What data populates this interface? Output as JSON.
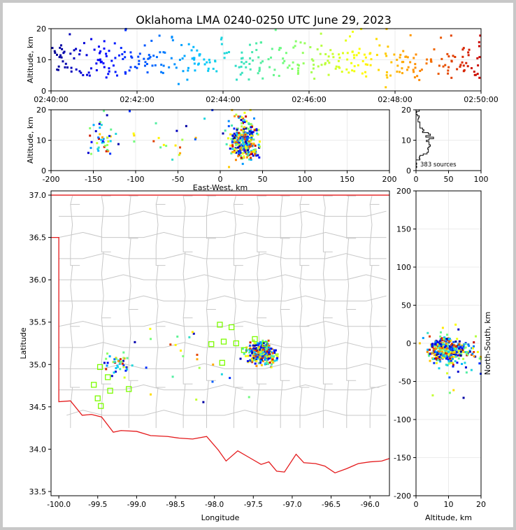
{
  "title": "Oklahoma LMA 0240-0250 UTC June 29, 2023",
  "source_count_label": "383 sources",
  "chart_data": [
    {
      "panel": "altitude-time",
      "type": "scatter",
      "xlabel": "",
      "ylabel": "Altitude, km",
      "xticks": [
        "02:40:00",
        "02:42:00",
        "02:44:00",
        "02:46:00",
        "02:48:00",
        "02:50:00"
      ],
      "xlim_minutes": [
        0,
        10
      ],
      "ylim": [
        0,
        20
      ],
      "yticks": [
        0,
        10,
        20
      ],
      "colormap": "time-jet",
      "points_note": "sources spread across whole 10-minute window, colored blue->red by time"
    },
    {
      "panel": "altitude-eastwest",
      "type": "scatter",
      "xlabel": "East-West, km",
      "ylabel": "Altitude, km",
      "xlim": [
        -200,
        200
      ],
      "xticks": [
        -200,
        -150,
        -100,
        -50,
        0,
        50,
        100,
        150,
        200
      ],
      "ylim": [
        0,
        20
      ],
      "yticks": [
        0,
        10,
        20
      ]
    },
    {
      "panel": "altitude-histogram",
      "type": "bar",
      "xlim": [
        0,
        100
      ],
      "xticks": [
        0,
        50,
        100
      ],
      "ylim": [
        0,
        20
      ],
      "yticks": [
        0,
        10,
        20
      ],
      "annotation": "383 sources"
    },
    {
      "panel": "plan-view",
      "type": "scatter",
      "xlabel": "Longitude",
      "ylabel": "Latitude",
      "xlim": [
        -100.1,
        -95.75
      ],
      "ylim": [
        33.45,
        37.05
      ],
      "xticks": [
        "-100.0",
        "-99.5",
        "-99.0",
        "-98.5",
        "-98.0",
        "-97.5",
        "-97.0",
        "-96.5",
        "-96.0"
      ],
      "xtick_values": [
        -100.0,
        -99.5,
        -99.0,
        -98.5,
        -98.0,
        -97.5,
        -97.0,
        -96.5,
        -96.0
      ],
      "yticks": [
        "33.5",
        "34.0",
        "34.5",
        "35.0",
        "35.5",
        "36.0",
        "36.5",
        "37.0"
      ],
      "ytick_values": [
        33.5,
        34.0,
        34.5,
        35.0,
        35.5,
        36.0,
        36.5,
        37.0
      ],
      "stations": [
        {
          "lon": -99.47,
          "lat": 34.97
        },
        {
          "lon": -99.55,
          "lat": 34.76
        },
        {
          "lon": -99.37,
          "lat": 34.85
        },
        {
          "lon": -99.5,
          "lat": 34.6
        },
        {
          "lon": -99.46,
          "lat": 34.51
        },
        {
          "lon": -99.34,
          "lat": 34.69
        },
        {
          "lon": -99.1,
          "lat": 34.71
        },
        {
          "lon": -97.93,
          "lat": 35.47
        },
        {
          "lon": -97.78,
          "lat": 35.44
        },
        {
          "lon": -98.04,
          "lat": 35.24
        },
        {
          "lon": -97.88,
          "lat": 35.27
        },
        {
          "lon": -97.72,
          "lat": 35.25
        },
        {
          "lon": -97.9,
          "lat": 35.02
        },
        {
          "lon": -97.62,
          "lat": 35.17
        },
        {
          "lon": -97.35,
          "lat": 35.24
        },
        {
          "lon": -97.48,
          "lat": 35.3
        }
      ]
    },
    {
      "panel": "northsouth-altitude",
      "type": "scatter",
      "xlabel": "Altitude, km",
      "ylabel": "North-South, km",
      "xlim": [
        0,
        20
      ],
      "xticks": [
        0,
        10,
        20
      ],
      "ylim": [
        -200,
        200
      ],
      "yticks": [
        -200,
        -150,
        -100,
        -50,
        0,
        50,
        100,
        150,
        200
      ]
    }
  ],
  "colors": {
    "state_border": "#e41a1c",
    "county_lines": "#c8c8c8",
    "station_marker": "#7cfc00",
    "grid": "#e6e6e6"
  }
}
